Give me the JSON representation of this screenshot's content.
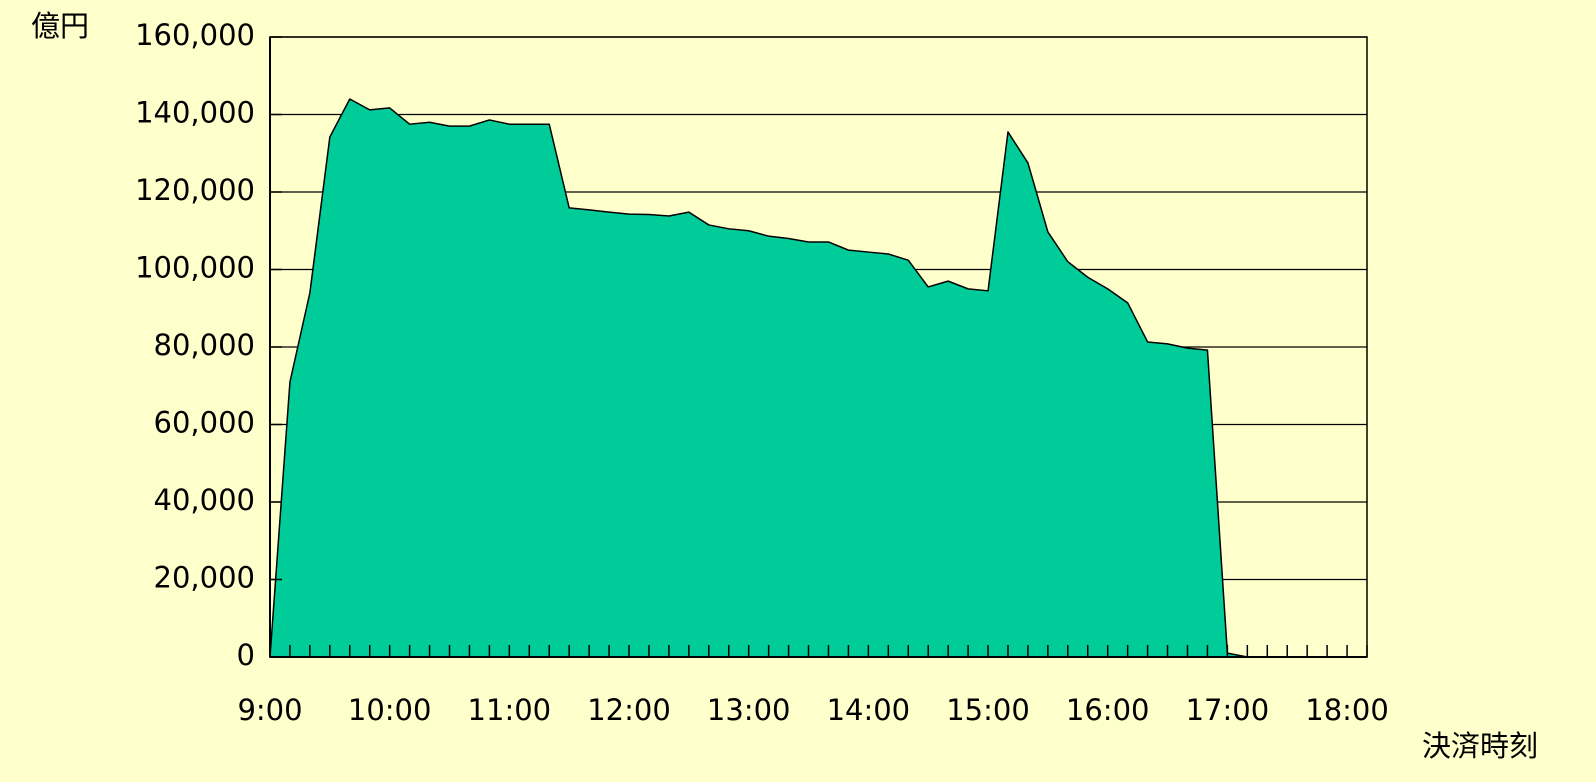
{
  "chart_data": {
    "type": "area",
    "y_label": "億円",
    "x_label": "決済時刻",
    "categories": [
      "9:00",
      null,
      null,
      null,
      null,
      null,
      "10:00",
      null,
      null,
      null,
      null,
      null,
      "11:00",
      null,
      null,
      null,
      null,
      null,
      "12:00",
      null,
      null,
      null,
      null,
      null,
      "13:00",
      null,
      null,
      null,
      null,
      null,
      "14:00",
      null,
      null,
      null,
      null,
      null,
      "15:00",
      null,
      null,
      null,
      null,
      null,
      "16:00",
      null,
      null,
      null,
      null,
      null,
      "17:00",
      null,
      null,
      null,
      null,
      null,
      "18:00",
      null
    ],
    "series": [
      {
        "color": "#00cc99",
        "values": [
          0,
          71000,
          94000,
          134200,
          144000,
          141200,
          141700,
          137500,
          138000,
          137000,
          137000,
          138600,
          137500,
          137500,
          137500,
          115900,
          115400,
          114800,
          114300,
          114200,
          113800,
          114800,
          111500,
          110500,
          110000,
          108600,
          108000,
          107100,
          107100,
          105000,
          104500,
          104000,
          102400,
          95500,
          97000,
          95000,
          94500,
          135500,
          127500,
          109700,
          102000,
          98000,
          95000,
          91400,
          81300,
          80800,
          79700,
          79200,
          1000,
          0,
          null,
          null,
          null,
          null,
          null,
          null
        ]
      }
    ],
    "ylim": [
      0,
      160000
    ],
    "yticks": [
      {
        "value": 0,
        "label": "0"
      },
      {
        "value": 20000,
        "label": "20,000"
      },
      {
        "value": 40000,
        "label": "40,000"
      },
      {
        "value": 60000,
        "label": "60,000"
      },
      {
        "value": 80000,
        "label": "80,000"
      },
      {
        "value": 100000,
        "label": "100,000"
      },
      {
        "value": 120000,
        "label": "120,000"
      },
      {
        "value": 140000,
        "label": "140,000"
      },
      {
        "value": 160000,
        "label": "160,000"
      }
    ],
    "grid": true
  }
}
